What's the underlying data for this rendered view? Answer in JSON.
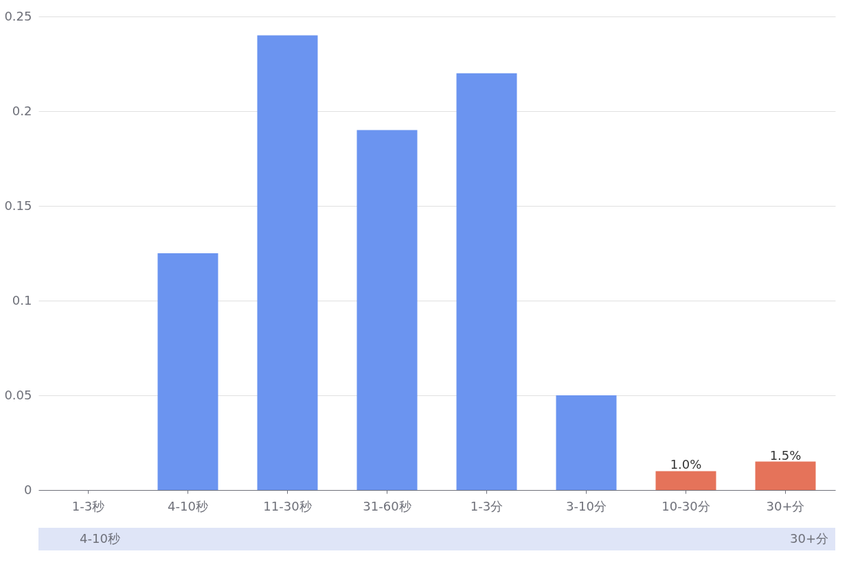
{
  "chart_data": {
    "type": "bar",
    "categories": [
      "1-3秒",
      "4-10秒",
      "11-30秒",
      "31-60秒",
      "1-3分",
      "3-10分",
      "10-30分",
      "30+分"
    ],
    "values": [
      0,
      0.125,
      0.24,
      0.19,
      0.22,
      0.05,
      0.01,
      0.015
    ],
    "colors": [
      "#6b94f0",
      "#6b94f0",
      "#6b94f0",
      "#6b94f0",
      "#6b94f0",
      "#6b94f0",
      "#e5735a",
      "#e5735a"
    ],
    "value_labels": [
      null,
      null,
      null,
      null,
      null,
      null,
      "1.0%",
      "1.5%"
    ],
    "ylim": [
      0,
      0.25
    ],
    "yticks": [
      0,
      0.05,
      0.1,
      0.15,
      0.2,
      0.25
    ],
    "grid": "y",
    "annotations": [
      "4-10秒",
      "30+分"
    ]
  }
}
